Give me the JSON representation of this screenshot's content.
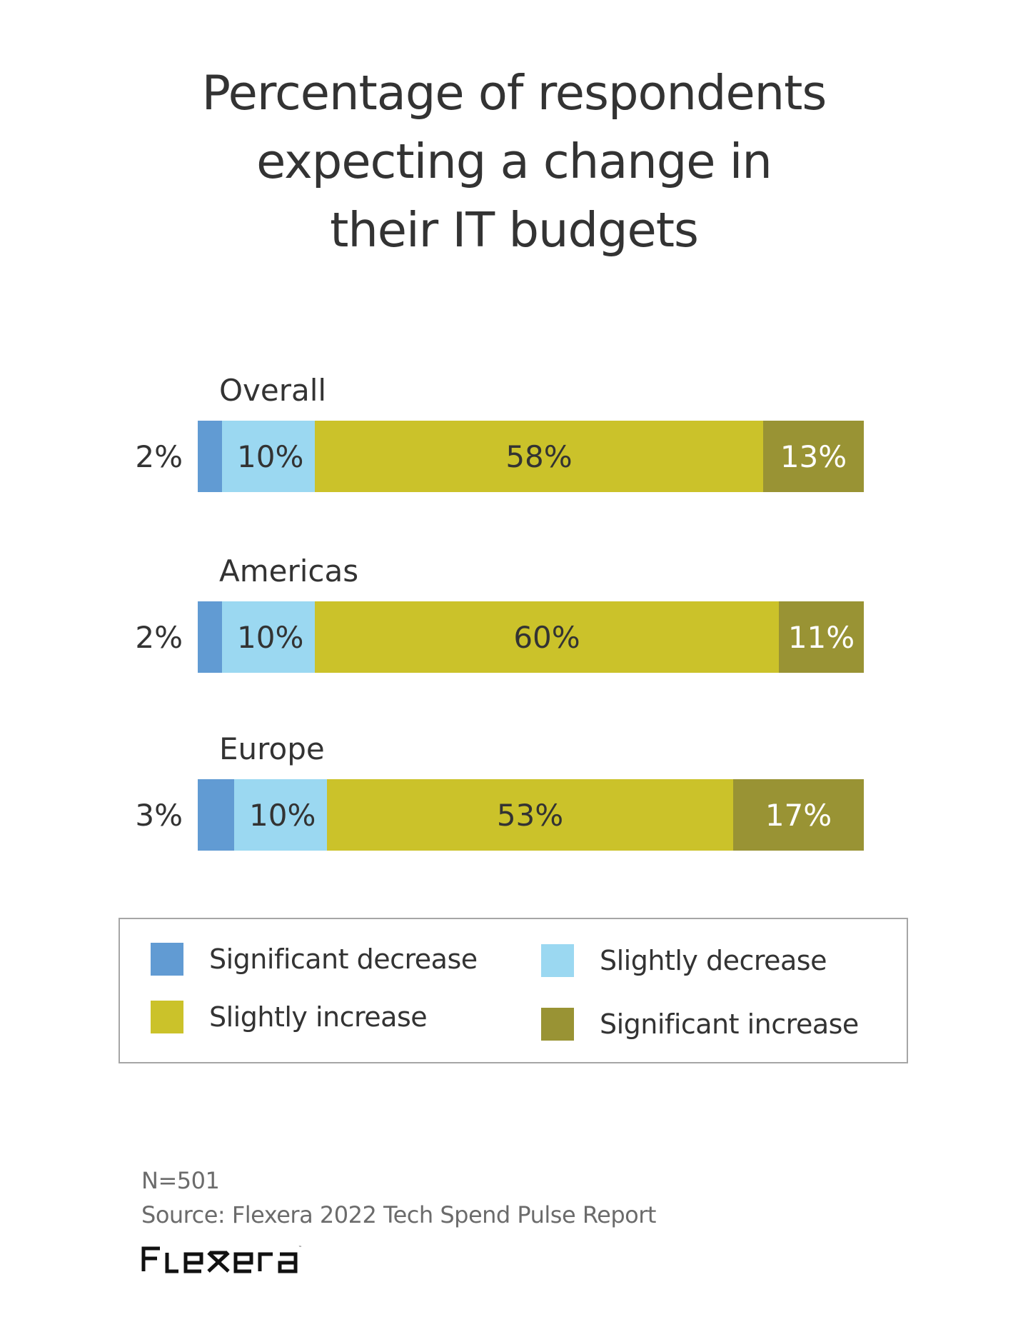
{
  "chart_data": {
    "type": "bar",
    "orientation": "horizontal",
    "stacked": true,
    "title": "Percentage of respondents expecting a change in their IT budgets",
    "title_lines": [
      "Percentage of respondents",
      "expecting a change in",
      "their IT budgets"
    ],
    "categories": [
      "Overall",
      "Americas",
      "Europe"
    ],
    "series": [
      {
        "name": "Significant decrease",
        "color": "#619bd3",
        "label_color": "#333333",
        "values": [
          2,
          2,
          3
        ]
      },
      {
        "name": "Slightly decrease",
        "color": "#9bd8f1",
        "label_color": "#333333",
        "values": [
          10,
          10,
          10
        ]
      },
      {
        "name": "Slightly increase",
        "color": "#cbc22a",
        "label_color": "#333333",
        "values": [
          58,
          60,
          53
        ]
      },
      {
        "name": "Significant increase",
        "color": "#999334",
        "label_color": "#ffffff",
        "values": [
          13,
          11,
          17
        ]
      }
    ],
    "unit": "%",
    "xlabel": "",
    "ylabel": "",
    "grid": false,
    "legend_position": "bottom",
    "note": "N=501",
    "source": "Source: Flexera 2022 Tech Spend Pulse Report"
  },
  "legend": {
    "items": [
      {
        "label": "Significant decrease",
        "color": "#619bd3"
      },
      {
        "label": "Slightly decrease",
        "color": "#9bd8f1"
      },
      {
        "label": "Slightly increase",
        "color": "#cbc22a"
      },
      {
        "label": "Significant increase",
        "color": "#999334"
      }
    ]
  },
  "footer": {
    "n": "N=501",
    "source": "Source: Flexera 2022 Tech Spend Pulse Report",
    "logo_text": "flexera"
  },
  "colors": {
    "text": "#333333",
    "muted_text": "#6b6b6b",
    "legend_border": "#a6a6a6"
  }
}
